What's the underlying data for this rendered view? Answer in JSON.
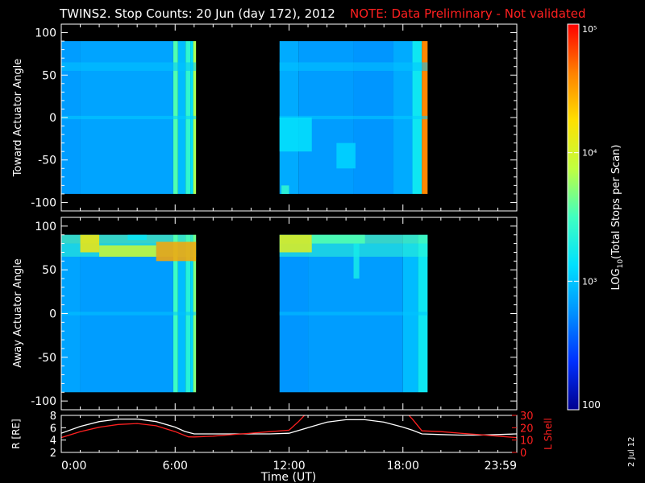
{
  "header": {
    "title": "TWINS2. Stop Counts: 20 Jun (day 172), 2012",
    "note": "NOTE: Data Preliminary - Not validated"
  },
  "side_date": "2 Jul 12",
  "colors": {
    "background": "#000000",
    "axes": "#ffffff",
    "note": "#ff2020",
    "r_line": "#ffffff",
    "lshell_line": "#ff2020"
  },
  "colorbar": {
    "label": "LOG10(Total Stops per Scan)",
    "label_parts": [
      "LOG",
      "10",
      "(Total Stops per Scan)"
    ],
    "scale": "log",
    "range": [
      100,
      100000
    ],
    "ticks": [
      {
        "value": 100,
        "text": "100"
      },
      {
        "value": 1000,
        "text": "10³"
      },
      {
        "value": 10000,
        "text": "10⁴"
      },
      {
        "value": 100000,
        "text": "10⁵"
      }
    ],
    "colormap": [
      "#00008f",
      "#0030ff",
      "#0090ff",
      "#00e0ff",
      "#40ffc0",
      "#c0ff40",
      "#ffe000",
      "#ff8000",
      "#ff0000"
    ]
  },
  "chart_data": [
    {
      "type": "heatmap",
      "panel": "toward",
      "ylabel": "Toward Actuator Angle",
      "xlim": [
        0,
        24
      ],
      "ylim": [
        -110,
        110
      ],
      "yticks": [
        100,
        50,
        0,
        -50,
        -100
      ],
      "data_x_ranges": [
        [
          0.0,
          7.1
        ],
        [
          11.5,
          19.3
        ]
      ],
      "data_y_range": [
        -90,
        90
      ],
      "base_value": 700,
      "columns": [
        {
          "x": [
            0.0,
            1.0
          ],
          "value": 650
        },
        {
          "x": [
            1.0,
            5.9
          ],
          "value": 700
        },
        {
          "x": [
            5.9,
            6.15
          ],
          "value": 3500
        },
        {
          "x": [
            6.15,
            6.55
          ],
          "value": 900
        },
        {
          "x": [
            6.55,
            6.8
          ],
          "value": 2500
        },
        {
          "x": [
            6.8,
            6.95
          ],
          "value": 1300
        },
        {
          "x": [
            6.95,
            7.1
          ],
          "value": 6500
        },
        {
          "x": [
            11.5,
            12.5
          ],
          "value": 750
        },
        {
          "x": [
            12.5,
            15.4
          ],
          "value": 650
        },
        {
          "x": [
            15.4,
            17.5
          ],
          "value": 600
        },
        {
          "x": [
            17.5,
            18.5
          ],
          "value": 750
        },
        {
          "x": [
            18.5,
            19.0
          ],
          "value": 1600
        },
        {
          "x": [
            19.0,
            19.3
          ],
          "value": 40000
        }
      ],
      "bands": [
        {
          "y": [
            55,
            65
          ],
          "value": 1000
        },
        {
          "y": [
            -2,
            2
          ],
          "value": 1100
        }
      ],
      "patches": [
        {
          "x": [
            11.5,
            13.2
          ],
          "y": [
            -40,
            0
          ],
          "value": 1400
        },
        {
          "x": [
            11.6,
            12.0
          ],
          "y": [
            -90,
            -80
          ],
          "value": 2600
        },
        {
          "x": [
            14.5,
            15.5
          ],
          "y": [
            -60,
            -30
          ],
          "value": 1200
        }
      ]
    },
    {
      "type": "heatmap",
      "panel": "away",
      "ylabel": "Away Actuator Angle",
      "xlim": [
        0,
        24
      ],
      "ylim": [
        -110,
        110
      ],
      "yticks": [
        100,
        50,
        0,
        -50,
        -100
      ],
      "data_x_ranges": [
        [
          0.0,
          7.1
        ],
        [
          11.5,
          19.3
        ]
      ],
      "data_y_range": [
        -90,
        90
      ],
      "base_value": 650,
      "columns": [
        {
          "x": [
            0.0,
            1.0
          ],
          "value": 700
        },
        {
          "x": [
            1.0,
            5.9
          ],
          "value": 650
        },
        {
          "x": [
            5.9,
            6.15
          ],
          "value": 3000
        },
        {
          "x": [
            6.15,
            6.55
          ],
          "value": 900
        },
        {
          "x": [
            6.55,
            6.8
          ],
          "value": 2200
        },
        {
          "x": [
            6.8,
            6.95
          ],
          "value": 1200
        },
        {
          "x": [
            6.95,
            7.1
          ],
          "value": 5000
        },
        {
          "x": [
            11.5,
            13.0
          ],
          "value": 600
        },
        {
          "x": [
            13.0,
            18.0
          ],
          "value": 650
        },
        {
          "x": [
            18.0,
            18.8
          ],
          "value": 900
        },
        {
          "x": [
            18.8,
            19.3
          ],
          "value": 1600
        }
      ],
      "bands": [
        {
          "y": [
            80,
            90
          ],
          "value": 4000
        },
        {
          "y": [
            65,
            80
          ],
          "value": 2500
        },
        {
          "y": [
            -2,
            2
          ],
          "value": 1000
        }
      ],
      "patches": [
        {
          "x": [
            1.0,
            2.0
          ],
          "y": [
            70,
            90
          ],
          "value": 15000
        },
        {
          "x": [
            2.0,
            5.0
          ],
          "y": [
            65,
            78
          ],
          "value": 9000
        },
        {
          "x": [
            5.0,
            7.1
          ],
          "y": [
            60,
            82
          ],
          "value": 30000
        },
        {
          "x": [
            3.5,
            4.5
          ],
          "y": [
            84,
            90
          ],
          "value": 1500
        },
        {
          "x": [
            11.5,
            13.2
          ],
          "y": [
            70,
            90
          ],
          "value": 12000
        },
        {
          "x": [
            13.2,
            16.0
          ],
          "y": [
            80,
            90
          ],
          "value": 3500
        },
        {
          "x": [
            15.4,
            15.7
          ],
          "y": [
            40,
            80
          ],
          "value": 1800
        }
      ]
    },
    {
      "type": "line",
      "panel": "orbit",
      "xlabel": "Time (UT)",
      "ylabel": "R [RE]",
      "y2label": "L Shell",
      "xlim": [
        0,
        24
      ],
      "ylim": [
        2,
        8
      ],
      "y2lim": [
        0,
        30
      ],
      "xticks": [
        {
          "value": 0,
          "text": "0:00"
        },
        {
          "value": 6,
          "text": "6:00"
        },
        {
          "value": 12,
          "text": "12:00"
        },
        {
          "value": 18,
          "text": "18:00"
        },
        {
          "value": 23.98,
          "text": "23:59"
        }
      ],
      "yticks": [
        2,
        4,
        6,
        8
      ],
      "y2ticks": [
        0,
        10,
        20,
        30
      ],
      "series": [
        {
          "axis": "left",
          "x": [
            0,
            1,
            2,
            3,
            4,
            5,
            6,
            6.5,
            7,
            8,
            9,
            10,
            11,
            12,
            13,
            14,
            15,
            16,
            17,
            18,
            18.5,
            19,
            20,
            21,
            22,
            23,
            24
          ],
          "y": [
            5.1,
            6.2,
            7.0,
            7.4,
            7.4,
            7.0,
            6.1,
            5.4,
            5.0,
            5.0,
            5.0,
            5.0,
            5.0,
            5.1,
            6.0,
            6.9,
            7.3,
            7.3,
            6.9,
            6.1,
            5.6,
            5.0,
            4.9,
            4.8,
            4.8,
            4.9,
            5.0
          ]
        },
        {
          "axis": "right",
          "x": [
            0,
            1,
            2,
            3,
            4,
            5,
            6,
            6.7,
            7,
            8,
            9,
            10,
            11,
            12,
            12.5,
            13,
            13.5,
            18,
            18.5,
            19,
            20,
            21,
            22,
            23,
            24
          ],
          "y": [
            12,
            16.8,
            20.4,
            22.6,
            23.4,
            21.6,
            16.8,
            12.6,
            12.5,
            13.2,
            14.4,
            15.6,
            16.8,
            18,
            25,
            33,
            40,
            35,
            27,
            17.5,
            16.8,
            15.6,
            14.4,
            13.2,
            12
          ]
        }
      ]
    }
  ]
}
